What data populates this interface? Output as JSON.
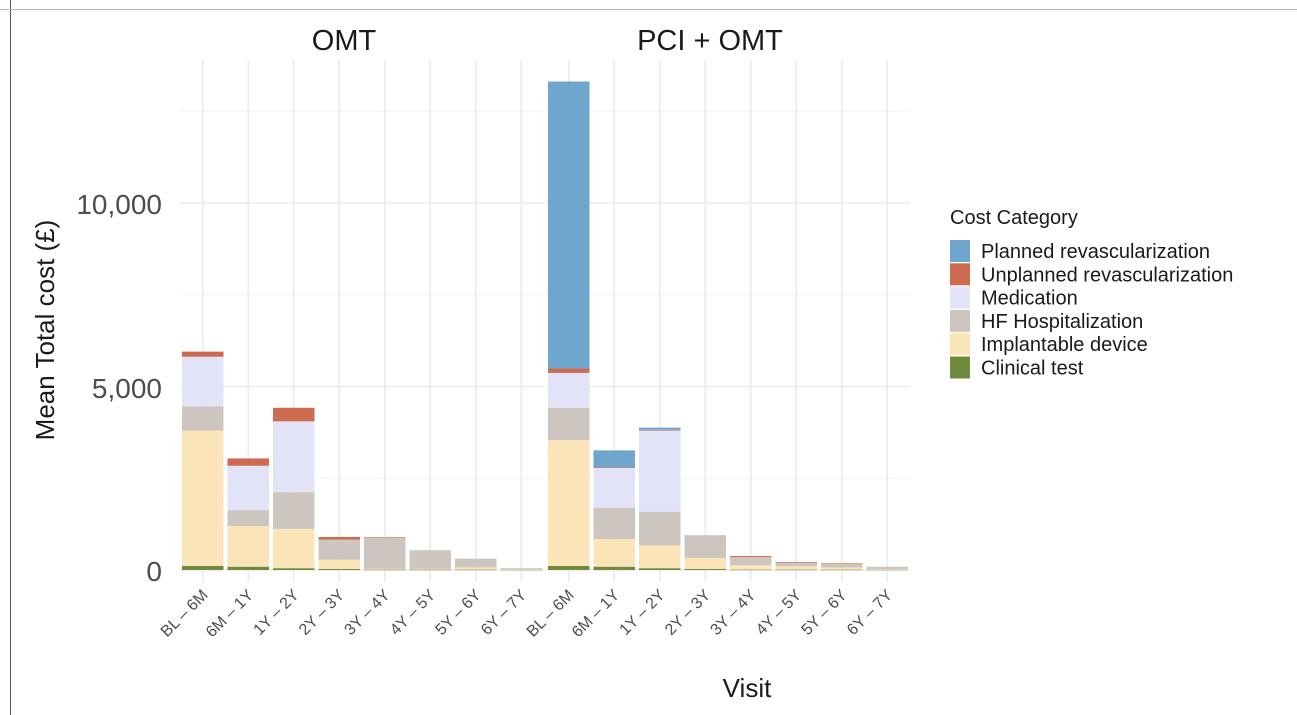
{
  "chart_data": {
    "type": "bar",
    "stacked": true,
    "faceted": true,
    "facets": [
      "OMT",
      "PCI + OMT"
    ],
    "categories": [
      "BL – 6M",
      "6M – 1Y",
      "1Y – 2Y",
      "2Y – 3Y",
      "3Y – 4Y",
      "4Y – 5Y",
      "5Y – 6Y",
      "6Y – 7Y"
    ],
    "xlabel": "Visit",
    "ylabel": "Mean Total cost (£)",
    "ylim": [
      -250,
      13600
    ],
    "yticks": [
      0,
      5000,
      10000
    ],
    "ytick_labels": [
      "0",
      "5,000",
      "10,000"
    ],
    "grid": true,
    "legend": {
      "title": "Cost Category",
      "position": "right"
    },
    "series_order_bottom_to_top": [
      "Clinical test",
      "Implantable device",
      "HF Hospitalization",
      "Medication",
      "Unplanned revascularization",
      "Planned revascularization"
    ],
    "legend_order": [
      "Planned revascularization",
      "Unplanned revascularization",
      "Medication",
      "HF Hospitalization",
      "Implantable device",
      "Clinical test"
    ],
    "colors": {
      "Planned revascularization": "#6ea6cd",
      "Unplanned revascularization": "#cd6b50",
      "Medication": "#e3e3f8",
      "HF Hospitalization": "#cdc5bf",
      "Implantable device": "#fbe4b8",
      "Clinical test": "#708a3d"
    },
    "panels": [
      {
        "facet": "OMT",
        "series": [
          {
            "name": "Clinical test",
            "values": [
              110,
              90,
              50,
              30,
              10,
              10,
              10,
              10
            ]
          },
          {
            "name": "Implantable device",
            "values": [
              3690,
              1110,
              1070,
              250,
              20,
              20,
              60,
              10
            ]
          },
          {
            "name": "HF Hospitalization",
            "values": [
              660,
              430,
              1000,
              550,
              840,
              510,
              240,
              30
            ]
          },
          {
            "name": "Medication",
            "values": [
              1350,
              1210,
              1930,
              0,
              0,
              0,
              0,
              0
            ]
          },
          {
            "name": "Unplanned revascularization",
            "values": [
              140,
              200,
              370,
              70,
              20,
              0,
              0,
              0
            ]
          },
          {
            "name": "Planned revascularization",
            "values": [
              0,
              0,
              0,
              0,
              0,
              0,
              0,
              0
            ]
          }
        ]
      },
      {
        "facet": "PCI + OMT",
        "series": [
          {
            "name": "Clinical test",
            "values": [
              110,
              90,
              50,
              30,
              10,
              10,
              10,
              10
            ]
          },
          {
            "name": "Implantable device",
            "values": [
              3430,
              750,
              620,
              300,
              120,
              90,
              60,
              10
            ]
          },
          {
            "name": "HF Hospitalization",
            "values": [
              880,
              860,
              920,
              620,
              220,
              110,
              100,
              70
            ]
          },
          {
            "name": "Medication",
            "values": [
              950,
              1080,
              2210,
              0,
              0,
              0,
              0,
              0
            ]
          },
          {
            "name": "Unplanned revascularization",
            "values": [
              120,
              20,
              20,
              0,
              30,
              10,
              10,
              0
            ]
          },
          {
            "name": "Planned revascularization",
            "values": [
              7820,
              460,
              60,
              0,
              0,
              0,
              0,
              0
            ]
          }
        ]
      }
    ]
  }
}
